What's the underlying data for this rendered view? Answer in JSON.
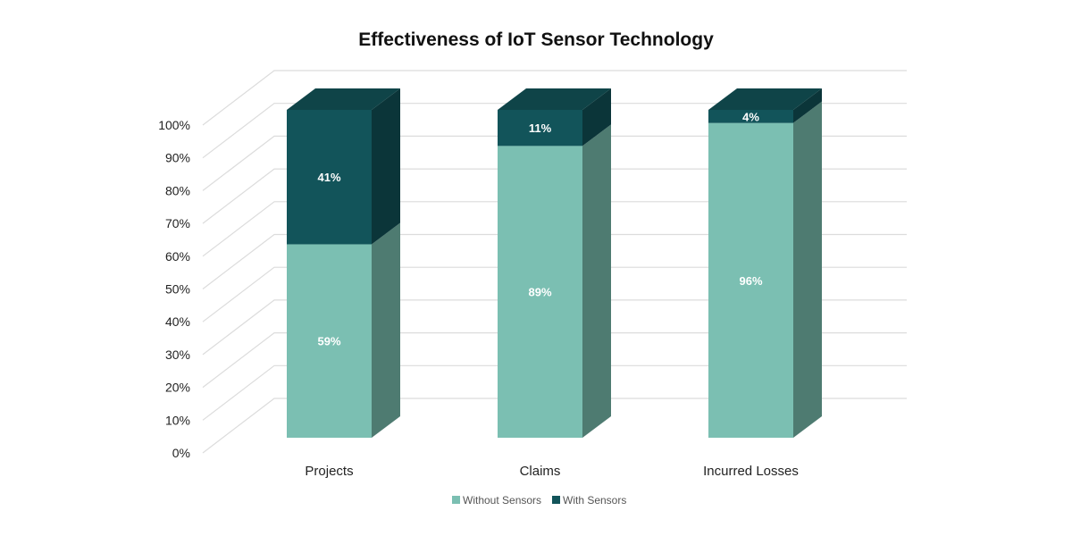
{
  "chart_data": {
    "type": "bar",
    "stacked": true,
    "three_d": true,
    "title": "Effectiveness of IoT Sensor Technology",
    "categories": [
      "Projects",
      "Claims",
      "Incurred Losses"
    ],
    "series": [
      {
        "name": "Without Sensors",
        "values": [
          59,
          89,
          96
        ],
        "labels": [
          "59%",
          "89%",
          "96%"
        ],
        "color": "#7bbfb2",
        "side_color": "#4e7b71"
      },
      {
        "name": "With Sensors",
        "values": [
          41,
          11,
          4
        ],
        "labels": [
          "41%",
          "11%",
          "4%"
        ],
        "color": "#12545a",
        "side_color": "#0b3539",
        "top_color": "#0f4448"
      }
    ],
    "yticks": [
      "0%",
      "10%",
      "20%",
      "30%",
      "40%",
      "50%",
      "60%",
      "70%",
      "80%",
      "90%",
      "100%"
    ],
    "ylim": [
      0,
      100
    ],
    "grid": true,
    "legend": "bottom"
  }
}
